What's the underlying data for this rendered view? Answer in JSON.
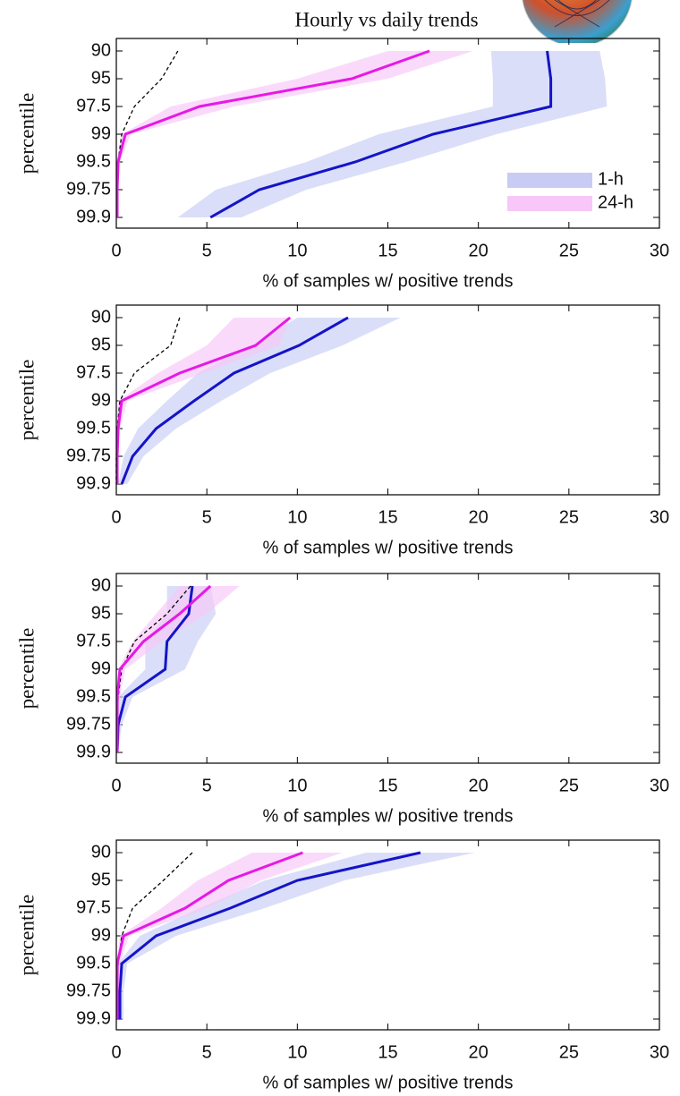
{
  "chart_data": [
    {
      "type": "line",
      "title": "Hourly vs daily trends",
      "ylabel": "percentile",
      "xlabel": "% of samples w/ positive trends",
      "categories": [
        "90",
        "95",
        "97.5",
        "99",
        "99.5",
        "99.75",
        "99.9"
      ],
      "xlim": [
        0,
        30
      ],
      "xticks": [
        0,
        5,
        10,
        15,
        20,
        25,
        30
      ],
      "legend": "lower right",
      "series": [
        {
          "name": "1-h",
          "color": "#1414c8",
          "band_color": "#c8ccf4",
          "values": [
            23.8,
            24,
            24,
            17.5,
            13.2,
            7.9,
            5.2
          ],
          "band_low": [
            20.7,
            20.8,
            20.8,
            14.5,
            10.5,
            5.5,
            3.4
          ],
          "band_high": [
            26.7,
            27,
            27.1,
            21,
            16,
            10.5,
            6.9
          ]
        },
        {
          "name": "24-h",
          "color": "#e619e6",
          "band_color": "#f8c6f8",
          "values": [
            17.3,
            13,
            4.6,
            0.5,
            0.1,
            0.05,
            0.05
          ],
          "band_low": [
            15,
            10,
            3,
            0.3,
            0,
            0,
            0
          ],
          "band_high": [
            19.7,
            15,
            6.5,
            0.8,
            0.2,
            0.1,
            0.1
          ]
        },
        {
          "color": "#000000",
          "dashed": true,
          "values": [
            3.4,
            2.5,
            1.0,
            0.3,
            0.1,
            0.05,
            0.05
          ]
        }
      ]
    },
    {
      "type": "line",
      "ylabel": "percentile",
      "xlabel": "% of samples w/ positive trends",
      "categories": [
        "90",
        "95",
        "97.5",
        "99",
        "99.5",
        "99.75",
        "99.9"
      ],
      "xlim": [
        0,
        30
      ],
      "xticks": [
        0,
        5,
        10,
        15,
        20,
        25,
        30
      ],
      "series": [
        {
          "color": "#1414c8",
          "band_color": "#c8ccf4",
          "values": [
            12.8,
            10.1,
            6.5,
            4.3,
            2.2,
            0.9,
            0.3
          ],
          "band_low": [
            10,
            7.5,
            4.5,
            2.8,
            1.2,
            0.4,
            0.1
          ],
          "band_high": [
            15.7,
            12.5,
            8.5,
            5.8,
            3.3,
            1.5,
            0.6
          ]
        },
        {
          "color": "#e619e6",
          "band_color": "#f8c6f8",
          "values": [
            9.6,
            7.7,
            3.5,
            0.3,
            0.1,
            0.05,
            0.05
          ],
          "band_low": [
            6.5,
            5,
            2.3,
            0.1,
            0,
            0,
            0
          ],
          "band_high": [
            9.6,
            9,
            4.8,
            0.6,
            0.2,
            0.1,
            0.1
          ]
        },
        {
          "color": "#000000",
          "dashed": true,
          "values": [
            3.5,
            3.0,
            1.0,
            0.2,
            0.05,
            0,
            0
          ]
        }
      ]
    },
    {
      "type": "line",
      "ylabel": "percentile",
      "xlabel": "% of samples w/ positive trends",
      "categories": [
        "90",
        "95",
        "97.5",
        "99",
        "99.5",
        "99.75",
        "99.9"
      ],
      "xlim": [
        0,
        30
      ],
      "xticks": [
        0,
        5,
        10,
        15,
        20,
        25,
        30
      ],
      "series": [
        {
          "color": "#1414c8",
          "band_color": "#c8ccf4",
          "values": [
            4.2,
            4.0,
            2.8,
            2.7,
            0.5,
            0.1,
            0.05
          ],
          "band_low": [
            2.8,
            2.8,
            1.6,
            1.6,
            0.1,
            0,
            0
          ],
          "band_high": [
            5.2,
            5.5,
            4.5,
            3.8,
            0.9,
            0.3,
            0.1
          ]
        },
        {
          "color": "#e619e6",
          "band_color": "#f8c6f8",
          "values": [
            5.2,
            3.5,
            1.5,
            0.2,
            0.05,
            0.05,
            0.05
          ],
          "band_low": [
            3.5,
            2.2,
            0.9,
            0.1,
            0,
            0,
            0
          ],
          "band_high": [
            6.8,
            5,
            2.5,
            0.5,
            0.2,
            0.1,
            0.1
          ]
        },
        {
          "color": "#000000",
          "dashed": true,
          "values": [
            4.1,
            2.8,
            1.0,
            0.3,
            0.1,
            0.05,
            0.05
          ]
        }
      ]
    },
    {
      "type": "line",
      "ylabel": "percentile",
      "xlabel": "% of samples w/ positive trends",
      "categories": [
        "90",
        "95",
        "97.5",
        "99",
        "99.5",
        "99.75",
        "99.9"
      ],
      "xlim": [
        0,
        30
      ],
      "xticks": [
        0,
        5,
        10,
        15,
        20,
        25,
        30
      ],
      "series": [
        {
          "color": "#1414c8",
          "band_color": "#c8ccf4",
          "values": [
            16.8,
            10.0,
            6.3,
            2.2,
            0.3,
            0.2,
            0.2
          ],
          "band_low": [
            13.8,
            8.2,
            4.6,
            1.3,
            0.1,
            0.1,
            0.1
          ],
          "band_high": [
            19.8,
            12.6,
            8.2,
            3.3,
            0.6,
            0.4,
            0.4
          ]
        },
        {
          "color": "#e619e6",
          "band_color": "#f8c6f8",
          "values": [
            10.3,
            6.2,
            3.8,
            0.4,
            0.05,
            0.05,
            0.05
          ],
          "band_low": [
            7.5,
            4.5,
            2.5,
            0.2,
            0,
            0,
            0
          ],
          "band_high": [
            12.5,
            8,
            5,
            0.7,
            0.2,
            0.1,
            0.1
          ]
        },
        {
          "color": "#000000",
          "dashed": true,
          "values": [
            4.2,
            2.6,
            0.9,
            0.3,
            0.1,
            0.05,
            0.05
          ]
        }
      ]
    }
  ]
}
